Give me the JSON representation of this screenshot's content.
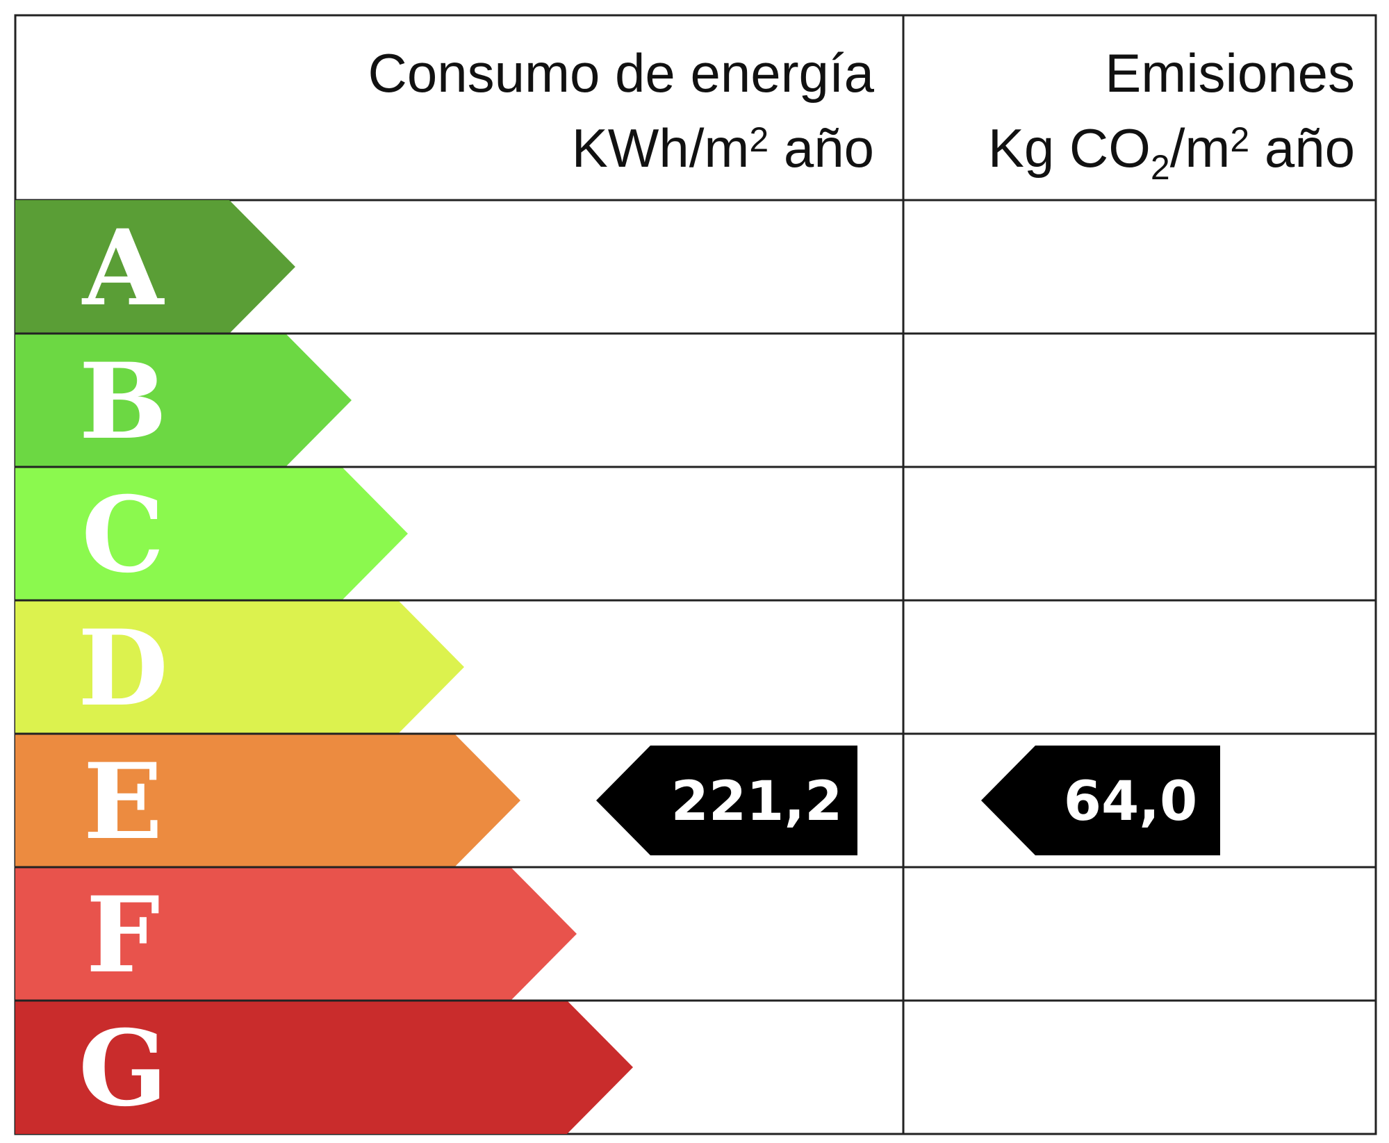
{
  "header": {
    "energy": {
      "title": "Consumo de energía",
      "unit_main": "KWh/m",
      "unit_sup": "2",
      "unit_tail": " año"
    },
    "emissions": {
      "title": "Emisiones",
      "unit_a": "Kg CO",
      "unit_sub": "2",
      "unit_b": "/m",
      "unit_sup": "2",
      "unit_tail": " año"
    }
  },
  "grades": [
    {
      "letter": "A",
      "color": "#5a9e36"
    },
    {
      "letter": "B",
      "color": "#6cd843"
    },
    {
      "letter": "C",
      "color": "#8bf94e"
    },
    {
      "letter": "D",
      "color": "#dcf24e"
    },
    {
      "letter": "E",
      "color": "#ec8b40"
    },
    {
      "letter": "F",
      "color": "#e8534c"
    },
    {
      "letter": "G",
      "color": "#c92c2c"
    }
  ],
  "ratings": {
    "energy": {
      "grade": "E",
      "value": "221,2"
    },
    "emissions": {
      "grade": "E",
      "value": "64,0"
    }
  }
}
